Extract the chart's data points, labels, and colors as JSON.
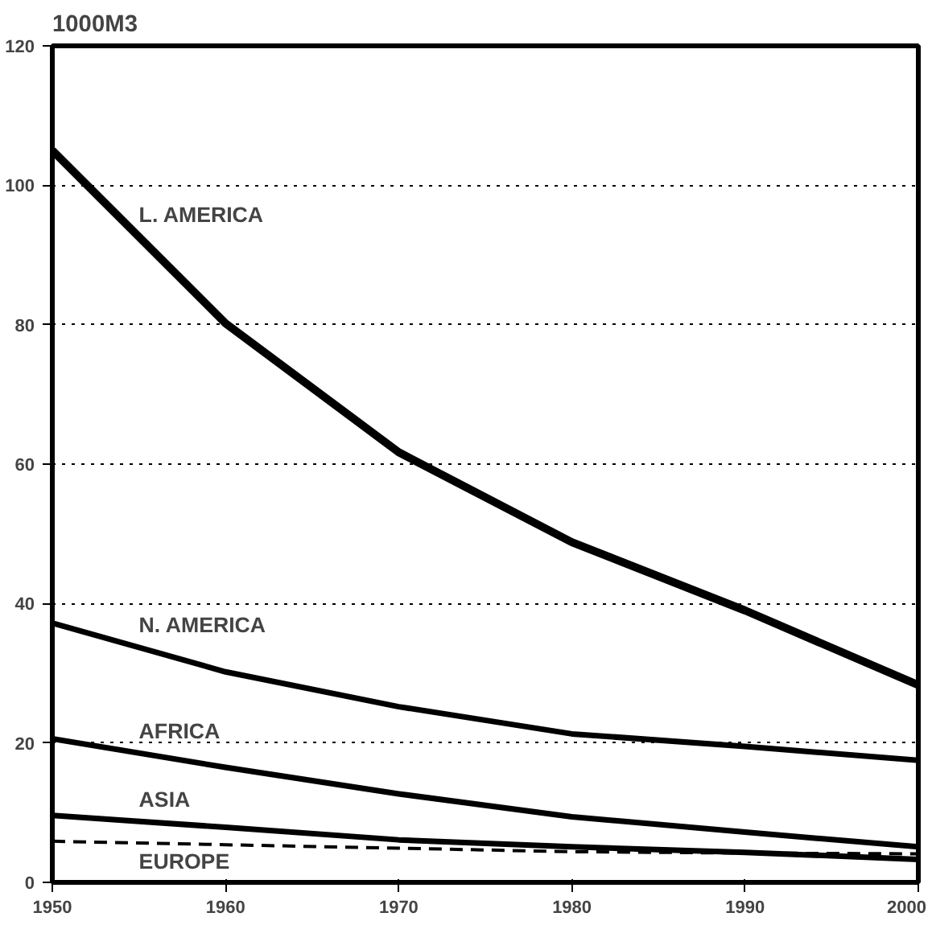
{
  "chart_data": {
    "type": "line",
    "ylabel": "1000M3",
    "x": [
      1950,
      1960,
      1970,
      1980,
      1990,
      2000
    ],
    "series": [
      {
        "name": "L. AMERICA",
        "color": "#000000",
        "values": [
          105,
          80.2,
          61.7,
          48.8,
          39,
          28.3
        ]
      },
      {
        "name": "N. AMERICA",
        "color": "#000000",
        "values": [
          37.2,
          30.2,
          25.2,
          21.3,
          19.5,
          17.5
        ]
      },
      {
        "name": "AFRICA",
        "color": "#000000",
        "values": [
          20.6,
          16.5,
          12.7,
          9.4,
          7.2,
          5.1
        ]
      },
      {
        "name": "ASIA",
        "color": "#000000",
        "values": [
          9.6,
          7.9,
          6.1,
          5.1,
          4.3,
          3.3
        ]
      },
      {
        "name": "EUROPE",
        "color": "#000000",
        "values": [
          5.9,
          5.4,
          4.9,
          4.4,
          4.2,
          4.1
        ],
        "line_style": "dashed"
      }
    ],
    "xlim": [
      1950,
      2000
    ],
    "ylim": [
      0,
      120
    ],
    "xticks": [
      1950,
      1960,
      1970,
      1980,
      1990,
      2000
    ],
    "yticks": [
      0,
      20,
      40,
      60,
      80,
      100,
      120
    ],
    "grid": "y",
    "legend": false,
    "marker": "none",
    "line_style": "solid"
  }
}
